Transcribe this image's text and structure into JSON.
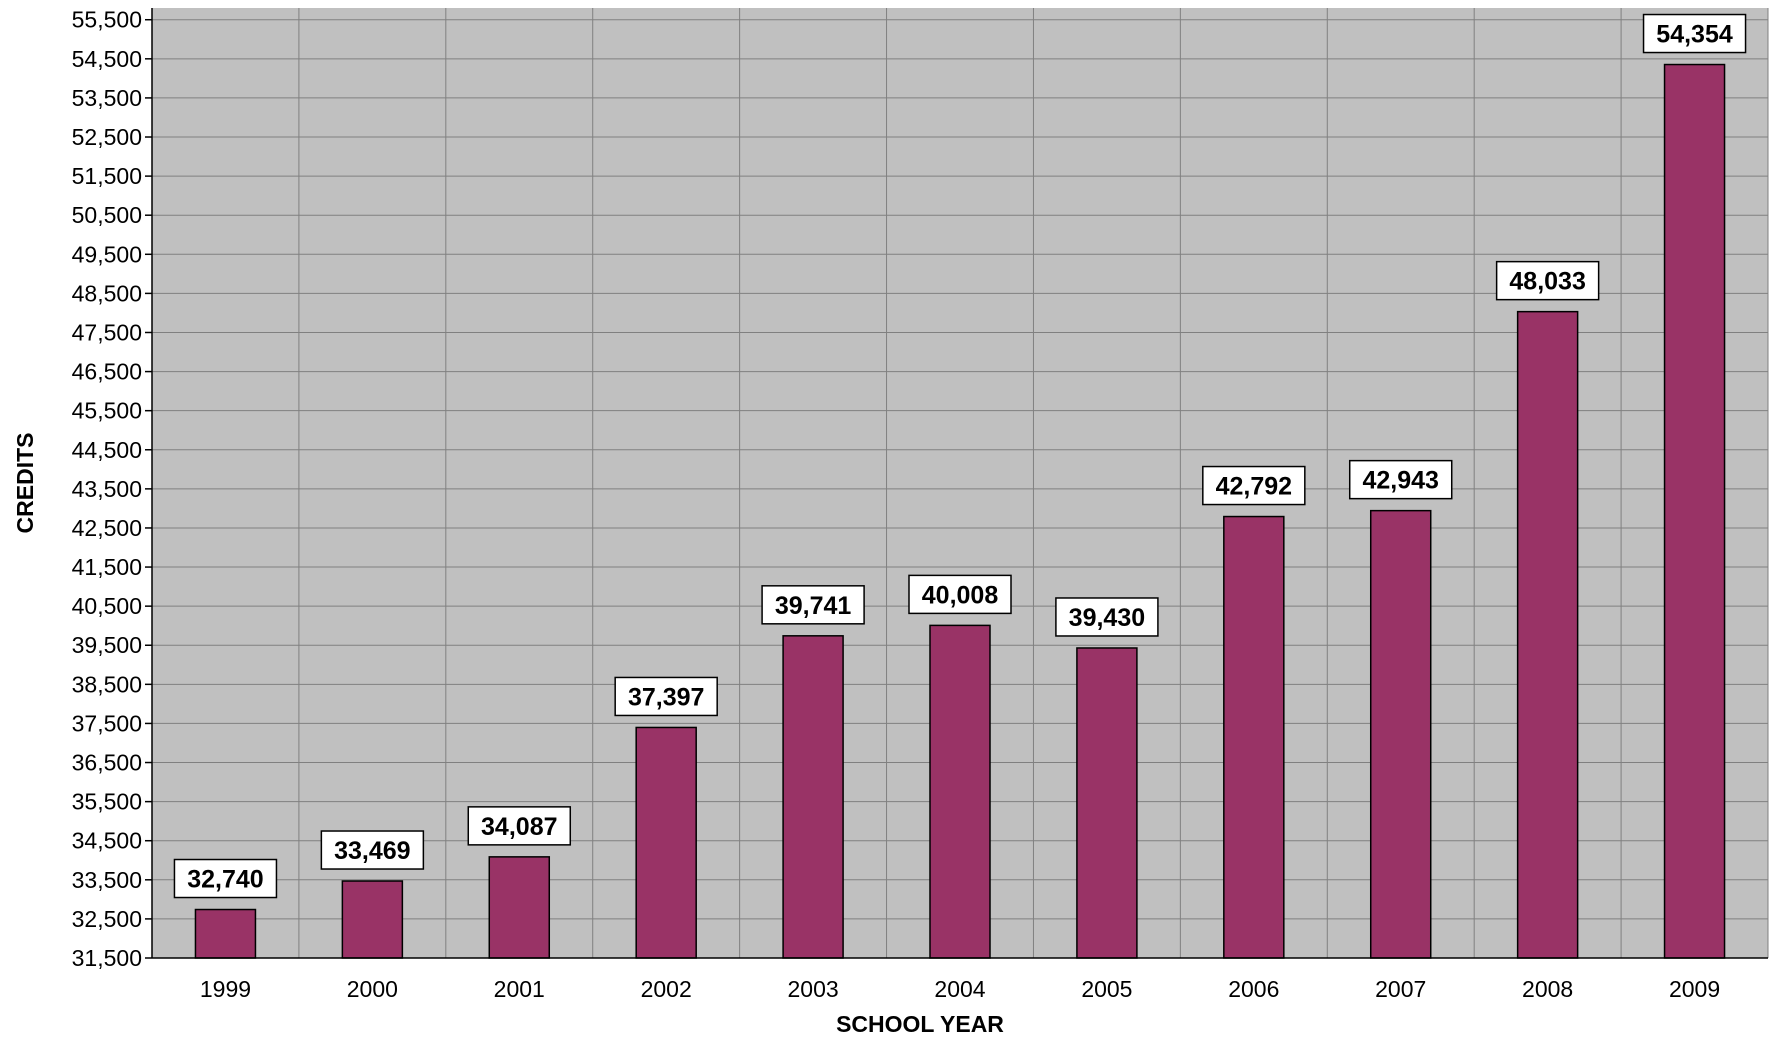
{
  "chart_data": {
    "type": "bar",
    "title": "",
    "xlabel": "SCHOOL YEAR",
    "ylabel": "CREDITS",
    "categories": [
      "1999",
      "2000",
      "2001",
      "2002",
      "2003",
      "2004",
      "2005",
      "2006",
      "2007",
      "2008",
      "2009"
    ],
    "values": [
      32740,
      33469,
      34087,
      37397,
      39741,
      40008,
      39430,
      42792,
      42943,
      48033,
      54354
    ],
    "value_labels": [
      "32,740",
      "33,469",
      "34,087",
      "37,397",
      "39,741",
      "40,008",
      "39,430",
      "42,792",
      "42,943",
      "48,033",
      "54,354"
    ],
    "ylim": [
      31500,
      55800
    ],
    "y_ticks": [
      31500,
      32500,
      33500,
      34500,
      35500,
      36500,
      37500,
      38500,
      39500,
      40500,
      41500,
      42500,
      43500,
      44500,
      45500,
      46500,
      47500,
      48500,
      49500,
      50500,
      51500,
      52500,
      53500,
      54500,
      55500
    ],
    "y_tick_labels": [
      "31,500",
      "32,500",
      "33,500",
      "34,500",
      "35,500",
      "36,500",
      "37,500",
      "38,500",
      "39,500",
      "40,500",
      "41,500",
      "42,500",
      "43,500",
      "44,500",
      "45,500",
      "46,500",
      "47,500",
      "48,500",
      "49,500",
      "50,500",
      "51,500",
      "52,500",
      "53,500",
      "54,500",
      "55,500"
    ],
    "grid": true,
    "legend": "none",
    "colors": {
      "bar": "#993366",
      "plot_background": "#c0c0c0",
      "grid": "#808080",
      "label_box": "#ffffff"
    }
  }
}
